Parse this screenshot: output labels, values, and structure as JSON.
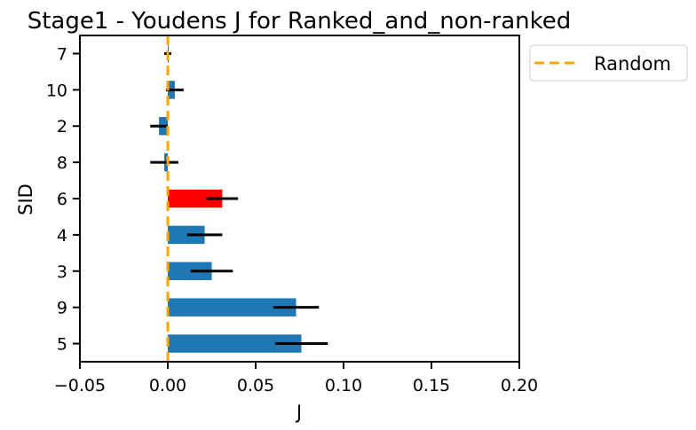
{
  "chart_data": {
    "type": "bar",
    "orientation": "horizontal",
    "title": "Stage1 - Youdens J for Ranked_and_non-ranked",
    "xlabel": "J",
    "ylabel": "SID",
    "xlim": [
      -0.05,
      0.2
    ],
    "xticks": [
      -0.05,
      0.0,
      0.05,
      0.1,
      0.15,
      0.2
    ],
    "xtick_labels": [
      "−0.05",
      "0.00",
      "0.05",
      "0.10",
      "0.15",
      "0.20"
    ],
    "categories": [
      "7",
      "10",
      "2",
      "8",
      "6",
      "4",
      "3",
      "9",
      "5"
    ],
    "values": [
      0.0,
      0.004,
      -0.005,
      -0.002,
      0.031,
      0.021,
      0.025,
      0.073,
      0.076
    ],
    "errors": [
      0.002,
      0.005,
      0.005,
      0.008,
      0.009,
      0.01,
      0.012,
      0.013,
      0.015
    ],
    "bar_colors": [
      "#1f77b4",
      "#1f77b4",
      "#1f77b4",
      "#1f77b4",
      "#ff0000",
      "#1f77b4",
      "#1f77b4",
      "#1f77b4",
      "#1f77b4"
    ],
    "reference_line": {
      "x": 0.0,
      "label": "Random",
      "color": "#ffa500",
      "style": "dashed"
    },
    "legend": {
      "entries": [
        "Random"
      ],
      "placement": "outside-top-right"
    },
    "grid": false
  }
}
